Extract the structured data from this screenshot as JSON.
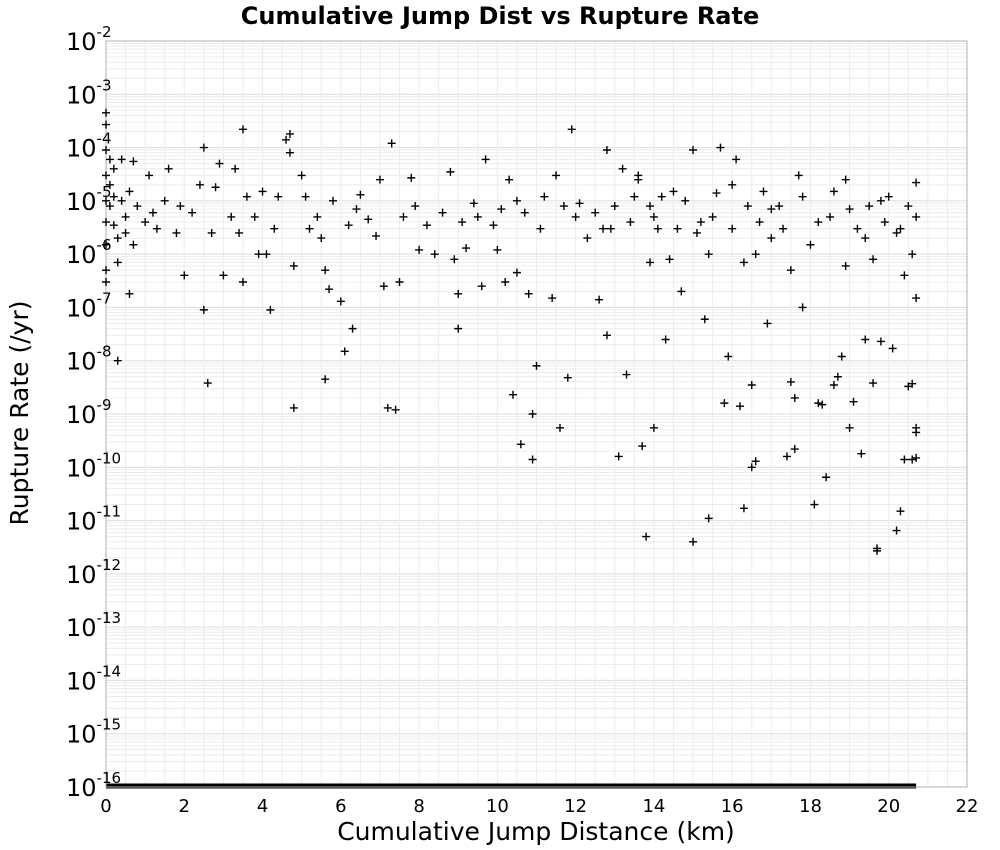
{
  "chart_data": {
    "type": "scatter",
    "title": "Cumulative Jump Dist vs Rupture Rate",
    "xlabel": "Cumulative Jump Distance (km)",
    "ylabel": "Rupture Rate (/yr)",
    "xlim": [
      0,
      22
    ],
    "ylim": [
      1e-16,
      0.01
    ],
    "yscale": "log",
    "grid": true,
    "marker": "+",
    "marker_color": "#000000",
    "x_ticks": [
      "0",
      "2",
      "4",
      "6",
      "8",
      "10",
      "12",
      "14",
      "16",
      "18",
      "20",
      "22"
    ],
    "y_ticks": [
      {
        "base": "10",
        "exp": "-16"
      },
      {
        "base": "10",
        "exp": "-15"
      },
      {
        "base": "10",
        "exp": "-14"
      },
      {
        "base": "10",
        "exp": "-13"
      },
      {
        "base": "10",
        "exp": "-12"
      },
      {
        "base": "10",
        "exp": "-11"
      },
      {
        "base": "10",
        "exp": "-10"
      },
      {
        "base": "10",
        "exp": "-9"
      },
      {
        "base": "10",
        "exp": "-8"
      },
      {
        "base": "10",
        "exp": "-7"
      },
      {
        "base": "10",
        "exp": "-6"
      },
      {
        "base": "10",
        "exp": "-5"
      },
      {
        "base": "10",
        "exp": "-4"
      },
      {
        "base": "10",
        "exp": "-3"
      },
      {
        "base": "10",
        "exp": "-2"
      }
    ],
    "points": [
      [
        0.0,
        0.00045
      ],
      [
        0.0,
        0.00027
      ],
      [
        0.0,
        9e-05
      ],
      [
        0.0,
        3e-05
      ],
      [
        0.0,
        1e-05
      ],
      [
        0.0,
        4e-06
      ],
      [
        0.0,
        1.5e-06
      ],
      [
        0.0,
        5e-07
      ],
      [
        0.0,
        3e-07
      ],
      [
        0.1,
        6e-05
      ],
      [
        0.1,
        2e-05
      ],
      [
        0.1,
        8e-06
      ],
      [
        0.2,
        4e-05
      ],
      [
        0.2,
        1.2e-05
      ],
      [
        0.2,
        3.5e-06
      ],
      [
        0.3,
        2e-06
      ],
      [
        0.3,
        7e-07
      ],
      [
        0.3,
        1e-08
      ],
      [
        0.4,
        6e-05
      ],
      [
        0.4,
        1e-05
      ],
      [
        0.5,
        5e-06
      ],
      [
        0.5,
        2.5e-06
      ],
      [
        0.6,
        1.8e-07
      ],
      [
        0.6,
        1.5e-05
      ],
      [
        0.7,
        5.5e-05
      ],
      [
        0.7,
        1.5e-06
      ],
      [
        0.8,
        8e-06
      ],
      [
        1.0,
        4e-06
      ],
      [
        1.1,
        3e-05
      ],
      [
        1.2,
        6e-06
      ],
      [
        1.3,
        3e-06
      ],
      [
        1.5,
        1e-05
      ],
      [
        1.6,
        4e-05
      ],
      [
        1.8,
        2.5e-06
      ],
      [
        1.9,
        8e-06
      ],
      [
        2.0,
        4e-07
      ],
      [
        2.2,
        6e-06
      ],
      [
        2.4,
        2e-05
      ],
      [
        2.5,
        0.0001
      ],
      [
        2.5,
        9e-08
      ],
      [
        2.6,
        3.8e-09
      ],
      [
        2.7,
        2.5e-06
      ],
      [
        2.8,
        1.8e-05
      ],
      [
        2.9,
        5e-05
      ],
      [
        3.0,
        4e-07
      ],
      [
        3.2,
        5e-06
      ],
      [
        3.3,
        4e-05
      ],
      [
        3.4,
        2.5e-06
      ],
      [
        3.5,
        0.00022
      ],
      [
        3.5,
        3e-07
      ],
      [
        3.6,
        1.2e-05
      ],
      [
        3.8,
        5e-06
      ],
      [
        3.9,
        1e-06
      ],
      [
        4.0,
        1.5e-05
      ],
      [
        4.1,
        1e-06
      ],
      [
        4.2,
        9e-08
      ],
      [
        4.3,
        3e-06
      ],
      [
        4.4,
        1.2e-05
      ],
      [
        4.6,
        0.00014
      ],
      [
        4.7,
        0.00018
      ],
      [
        4.7,
        8e-05
      ],
      [
        4.8,
        1.3e-09
      ],
      [
        4.8,
        6e-07
      ],
      [
        5.0,
        3e-05
      ],
      [
        5.1,
        1.2e-05
      ],
      [
        5.2,
        3e-06
      ],
      [
        5.4,
        5e-06
      ],
      [
        5.5,
        2e-06
      ],
      [
        5.6,
        4.5e-09
      ],
      [
        5.6,
        5e-07
      ],
      [
        5.7,
        2.2e-07
      ],
      [
        5.8,
        1e-05
      ],
      [
        6.0,
        1.3e-07
      ],
      [
        6.1,
        1.5e-08
      ],
      [
        6.2,
        3.5e-06
      ],
      [
        6.3,
        4e-08
      ],
      [
        6.4,
        7e-06
      ],
      [
        6.5,
        1.3e-05
      ],
      [
        6.7,
        4.5e-06
      ],
      [
        6.9,
        2.2e-06
      ],
      [
        7.0,
        2.5e-05
      ],
      [
        7.1,
        2.5e-07
      ],
      [
        7.2,
        1.3e-09
      ],
      [
        7.3,
        0.00012
      ],
      [
        7.4,
        1.2e-09
      ],
      [
        7.5,
        3e-07
      ],
      [
        7.6,
        5e-06
      ],
      [
        7.8,
        2.7e-05
      ],
      [
        7.9,
        8e-06
      ],
      [
        8.0,
        1.2e-06
      ],
      [
        8.2,
        3.5e-06
      ],
      [
        8.4,
        1e-06
      ],
      [
        8.6,
        6e-06
      ],
      [
        8.8,
        3.5e-05
      ],
      [
        8.9,
        8e-07
      ],
      [
        9.0,
        4e-08
      ],
      [
        9.0,
        1.8e-07
      ],
      [
        9.1,
        4e-06
      ],
      [
        9.2,
        1.3e-06
      ],
      [
        9.4,
        9e-06
      ],
      [
        9.6,
        2.5e-07
      ],
      [
        9.7,
        6e-05
      ],
      [
        9.9,
        3.5e-06
      ],
      [
        10.0,
        1.2e-06
      ],
      [
        10.1,
        7e-06
      ],
      [
        10.2,
        3e-07
      ],
      [
        10.3,
        2.5e-05
      ],
      [
        10.4,
        2.3e-09
      ],
      [
        10.5,
        4.5e-07
      ],
      [
        10.6,
        2.7e-10
      ],
      [
        10.7,
        6e-06
      ],
      [
        10.8,
        1.8e-07
      ],
      [
        10.9,
        1.4e-10
      ],
      [
        10.9,
        1e-09
      ],
      [
        11.0,
        8e-09
      ],
      [
        11.1,
        3e-06
      ],
      [
        11.2,
        1.2e-05
      ],
      [
        11.4,
        1.5e-07
      ],
      [
        11.5,
        3e-05
      ],
      [
        11.6,
        5.5e-10
      ],
      [
        11.7,
        8e-06
      ],
      [
        11.8,
        4.8e-09
      ],
      [
        11.9,
        0.00022
      ],
      [
        12.0,
        5e-06
      ],
      [
        12.1,
        9e-06
      ],
      [
        12.3,
        2e-06
      ],
      [
        12.5,
        6e-06
      ],
      [
        12.6,
        1.4e-07
      ],
      [
        12.7,
        3e-06
      ],
      [
        12.8,
        3e-08
      ],
      [
        12.8,
        9e-05
      ],
      [
        13.0,
        8e-06
      ],
      [
        13.1,
        1.6e-10
      ],
      [
        13.2,
        4e-05
      ],
      [
        13.3,
        5.5e-09
      ],
      [
        13.4,
        4e-06
      ],
      [
        13.5,
        1.2e-05
      ],
      [
        13.6,
        2.5e-05
      ],
      [
        13.7,
        2.5e-10
      ],
      [
        13.8,
        5e-12
      ],
      [
        13.9,
        8e-06
      ],
      [
        14.0,
        5.5e-10
      ],
      [
        14.1,
        3e-06
      ],
      [
        14.2,
        1.2e-05
      ],
      [
        14.3,
        2.5e-08
      ],
      [
        14.4,
        8e-07
      ],
      [
        14.6,
        3e-06
      ],
      [
        14.8,
        1e-05
      ],
      [
        15.0,
        9e-05
      ],
      [
        15.0,
        4e-12
      ],
      [
        15.1,
        2.5e-06
      ],
      [
        15.3,
        6e-08
      ],
      [
        15.4,
        1.1e-11
      ],
      [
        15.5,
        5e-06
      ],
      [
        15.6,
        1.4e-05
      ],
      [
        15.7,
        0.0001
      ],
      [
        15.8,
        1.6e-09
      ],
      [
        15.9,
        1.2e-08
      ],
      [
        16.0,
        3e-06
      ],
      [
        16.1,
        6e-05
      ],
      [
        16.2,
        1.4e-09
      ],
      [
        16.3,
        1.7e-11
      ],
      [
        16.4,
        8e-06
      ],
      [
        16.5,
        1e-10
      ],
      [
        16.5,
        3.5e-09
      ],
      [
        16.6,
        1.3e-10
      ],
      [
        16.7,
        4e-06
      ],
      [
        16.8,
        1.5e-05
      ],
      [
        16.9,
        5e-08
      ],
      [
        17.0,
        2e-06
      ],
      [
        17.2,
        8e-06
      ],
      [
        17.4,
        1.6e-10
      ],
      [
        17.5,
        4e-09
      ],
      [
        17.6,
        2.2e-10
      ],
      [
        17.6,
        2e-09
      ],
      [
        17.7,
        3e-05
      ],
      [
        17.8,
        1e-07
      ],
      [
        18.0,
        1.5e-06
      ],
      [
        18.1,
        2e-11
      ],
      [
        18.2,
        1.6e-09
      ],
      [
        18.3,
        1.5e-09
      ],
      [
        18.4,
        6.5e-11
      ],
      [
        18.5,
        5e-06
      ],
      [
        18.6,
        3.5e-09
      ],
      [
        18.7,
        5e-09
      ],
      [
        18.8,
        1.2e-08
      ],
      [
        18.9,
        2.5e-05
      ],
      [
        19.0,
        5.5e-10
      ],
      [
        19.1,
        1.7e-09
      ],
      [
        19.2,
        3e-06
      ],
      [
        19.3,
        1.8e-10
      ],
      [
        19.4,
        2.5e-08
      ],
      [
        19.5,
        8e-06
      ],
      [
        19.6,
        3.8e-09
      ],
      [
        19.7,
        3e-12
      ],
      [
        19.7,
        2.7e-12
      ],
      [
        19.8,
        2.3e-08
      ],
      [
        19.9,
        4e-06
      ],
      [
        20.0,
        1.2e-05
      ],
      [
        20.1,
        1.7e-08
      ],
      [
        20.2,
        6.5e-12
      ],
      [
        20.2,
        2.5e-06
      ],
      [
        20.3,
        1.5e-11
      ],
      [
        20.4,
        1.4e-10
      ],
      [
        20.5,
        3.3e-09
      ],
      [
        20.6,
        3.7e-09
      ],
      [
        20.6,
        1.4e-10
      ],
      [
        20.7,
        4.5e-10
      ],
      [
        20.7,
        5.5e-10
      ],
      [
        20.7,
        1.5e-10
      ],
      [
        20.7,
        1.5e-07
      ],
      [
        20.7,
        2.2e-05
      ],
      [
        20.7,
        5e-06
      ],
      [
        20.6,
        1e-06
      ],
      [
        13.6,
        3e-05
      ],
      [
        14.0,
        5e-06
      ],
      [
        14.5,
        1.5e-05
      ],
      [
        15.2,
        4e-06
      ],
      [
        16.0,
        2e-05
      ],
      [
        16.6,
        1e-06
      ],
      [
        17.0,
        7e-06
      ],
      [
        17.3,
        3e-06
      ],
      [
        17.8,
        1.2e-05
      ],
      [
        18.2,
        4e-06
      ],
      [
        18.6,
        1.5e-05
      ],
      [
        19.0,
        7e-06
      ],
      [
        19.4,
        2e-06
      ],
      [
        19.8,
        1e-05
      ],
      [
        20.3,
        3e-06
      ],
      [
        20.5,
        8e-06
      ],
      [
        17.5,
        5e-07
      ],
      [
        18.9,
        6e-07
      ],
      [
        19.6,
        8e-07
      ],
      [
        20.4,
        4e-07
      ],
      [
        16.3,
        7e-07
      ],
      [
        15.4,
        1e-06
      ],
      [
        14.7,
        2e-07
      ],
      [
        13.9,
        7e-07
      ],
      [
        12.9,
        3e-06
      ],
      [
        10.5,
        1e-05
      ],
      [
        9.5,
        5e-06
      ]
    ]
  }
}
